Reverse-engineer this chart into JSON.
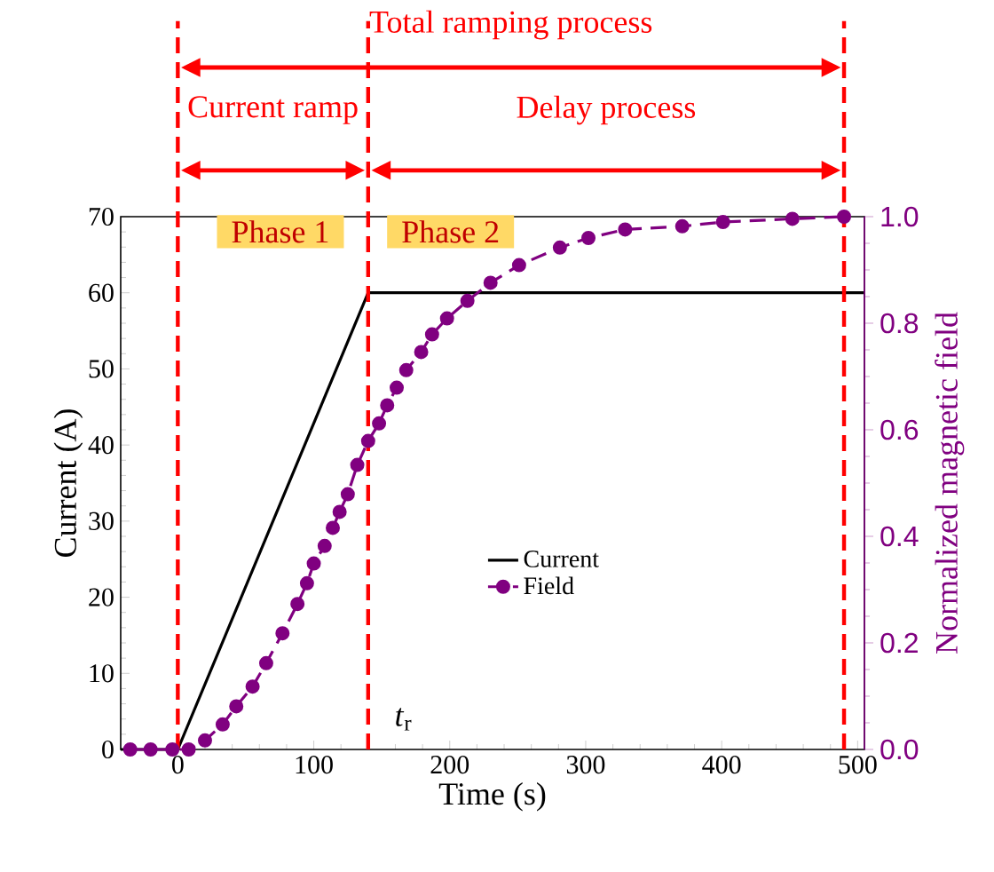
{
  "chart_data": {
    "type": "line",
    "xlabel": "Time (s)",
    "ylabel": "Current (A)",
    "y2label": "Normalized magnetic field",
    "xlim": [
      -42,
      505
    ],
    "xticks": [
      0,
      100,
      200,
      300,
      400,
      500
    ],
    "ylim": [
      0,
      70
    ],
    "yticks": [
      0,
      10,
      20,
      30,
      40,
      50,
      60,
      70
    ],
    "y2lim": [
      0,
      1
    ],
    "y2ticks": [
      {
        "value": 0,
        "label": "0.0"
      },
      {
        "value": 0.2,
        "label": "0.2"
      },
      {
        "value": 0.4,
        "label": "0.4"
      },
      {
        "value": 0.6,
        "label": "0.6"
      },
      {
        "value": 0.8,
        "label": "0.8"
      },
      {
        "value": 1,
        "label": "1.0"
      }
    ],
    "legend": "center",
    "series": [
      {
        "name": "Current",
        "color": "#000000",
        "marker": "none",
        "line_style": "solid",
        "x": [
          -42,
          0,
          140,
          505
        ],
        "values": [
          0,
          0,
          60,
          60
        ]
      },
      {
        "name": "Field",
        "color": "#800080",
        "axis": "y2",
        "marker": "circle",
        "line_style": "dashed",
        "x": [
          -35,
          -20,
          -4,
          8,
          20,
          33,
          43,
          55,
          65,
          77,
          88,
          95,
          100,
          108,
          114,
          119,
          125,
          132,
          140,
          148,
          154,
          161,
          168,
          179,
          187,
          198,
          213,
          230,
          251,
          281,
          302,
          329,
          371,
          401,
          452,
          490
        ],
        "values": [
          0,
          0,
          0,
          0,
          0.017,
          0.047,
          0.081,
          0.118,
          0.162,
          0.218,
          0.273,
          0.312,
          0.349,
          0.382,
          0.416,
          0.446,
          0.479,
          0.534,
          0.579,
          0.612,
          0.646,
          0.679,
          0.712,
          0.746,
          0.779,
          0.809,
          0.842,
          0.876,
          0.909,
          0.942,
          0.96,
          0.976,
          0.982,
          0.99,
          0.996,
          1.0
        ]
      }
    ],
    "ref_lines": [
      {
        "axis": "x",
        "value": 0,
        "color": "#ff0000",
        "line_style": "dashed"
      },
      {
        "axis": "x",
        "value": 140,
        "color": "#ff0000",
        "line_style": "dashed",
        "label": "*t*$_{r}$"
      },
      {
        "axis": "x",
        "value": 490,
        "color": "#ff0000",
        "line_style": "dashed"
      }
    ],
    "annotations": [
      "Total ramping process",
      "Current ramp",
      "Delay process",
      "Phase 1",
      "Phase 2"
    ]
  }
}
